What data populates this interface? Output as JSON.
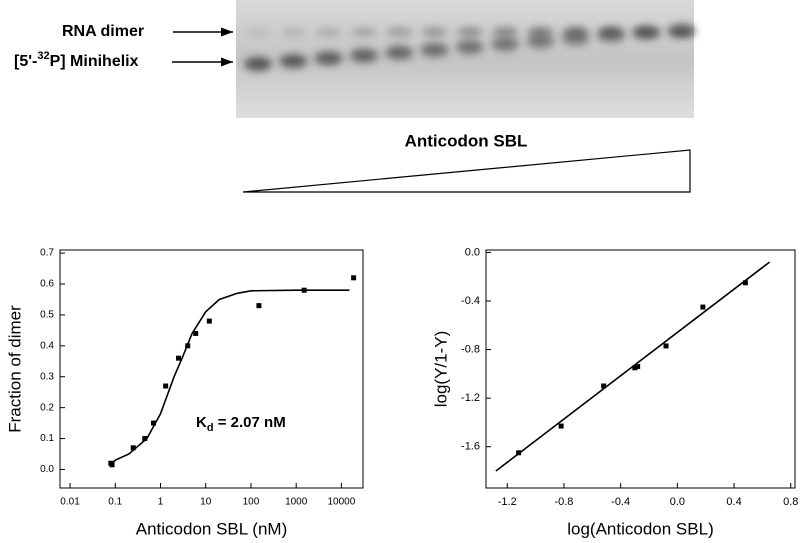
{
  "gel": {
    "dimer_label": "RNA dimer",
    "minihelix_label": [
      "[5'-",
      "32",
      "P] Minihelix"
    ],
    "gradient_label": "Anticodon SBL"
  },
  "chart_data": [
    {
      "type": "scatter",
      "xscale": "log",
      "xlabel": "Anticodon SBL (nM)",
      "ylabel": "Fraction of dimer",
      "annotation": [
        "K",
        "d",
        " = 2.07 nM"
      ],
      "color": "#000000",
      "xlim": [
        0.006,
        30000
      ],
      "xticks": [
        0.01,
        0.1,
        1,
        10,
        100,
        1000,
        10000
      ],
      "ylim": [
        -0.06,
        0.71
      ],
      "yticks": [
        {
          "value": 0,
          "label": "0.0"
        },
        0.1,
        0.2,
        0.3,
        0.4,
        0.5,
        0.6,
        0.7
      ],
      "points": {
        "x": [
          0.08,
          0.085,
          0.25,
          0.45,
          0.7,
          1.3,
          2.5,
          4,
          6,
          12,
          150,
          1500,
          18600
        ],
        "y": [
          0.02,
          0.015,
          0.07,
          0.1,
          0.15,
          0.27,
          0.36,
          0.4,
          0.44,
          0.48,
          0.53,
          0.58,
          0.62
        ]
      },
      "fit": {
        "x": [
          0.08,
          0.1,
          0.2,
          0.5,
          1,
          2,
          3,
          5,
          10,
          20,
          50,
          100,
          1000,
          15000
        ],
        "y": [
          0.015,
          0.03,
          0.05,
          0.1,
          0.18,
          0.3,
          0.36,
          0.44,
          0.51,
          0.55,
          0.57,
          0.578,
          0.58,
          0.58
        ]
      }
    },
    {
      "type": "scatter",
      "xlabel": "log(Anticodon SBL)",
      "ylabel": "log(Y/1-Y)",
      "color": "#000000",
      "xlim": [
        -1.35,
        0.83
      ],
      "xticks": [
        -1.2,
        -0.8,
        -0.4,
        {
          "value": 0,
          "label": "0.0"
        },
        0.4,
        0.8
      ],
      "ylim": [
        -1.94,
        0.02
      ],
      "yticks": [
        {
          "value": 0,
          "label": "0.0"
        },
        -0.4,
        -0.8,
        -1.2,
        -1.6
      ],
      "points": {
        "x": [
          -1.12,
          -0.82,
          -0.52,
          -0.3,
          -0.28,
          -0.08,
          0.18,
          0.48
        ],
        "y": [
          -1.65,
          -1.43,
          -1.1,
          -0.95,
          -0.94,
          -0.77,
          -0.45,
          -0.25
        ]
      },
      "fit": {
        "x": [
          -1.28,
          0.65
        ],
        "y": [
          -1.8,
          -0.08
        ]
      }
    }
  ]
}
